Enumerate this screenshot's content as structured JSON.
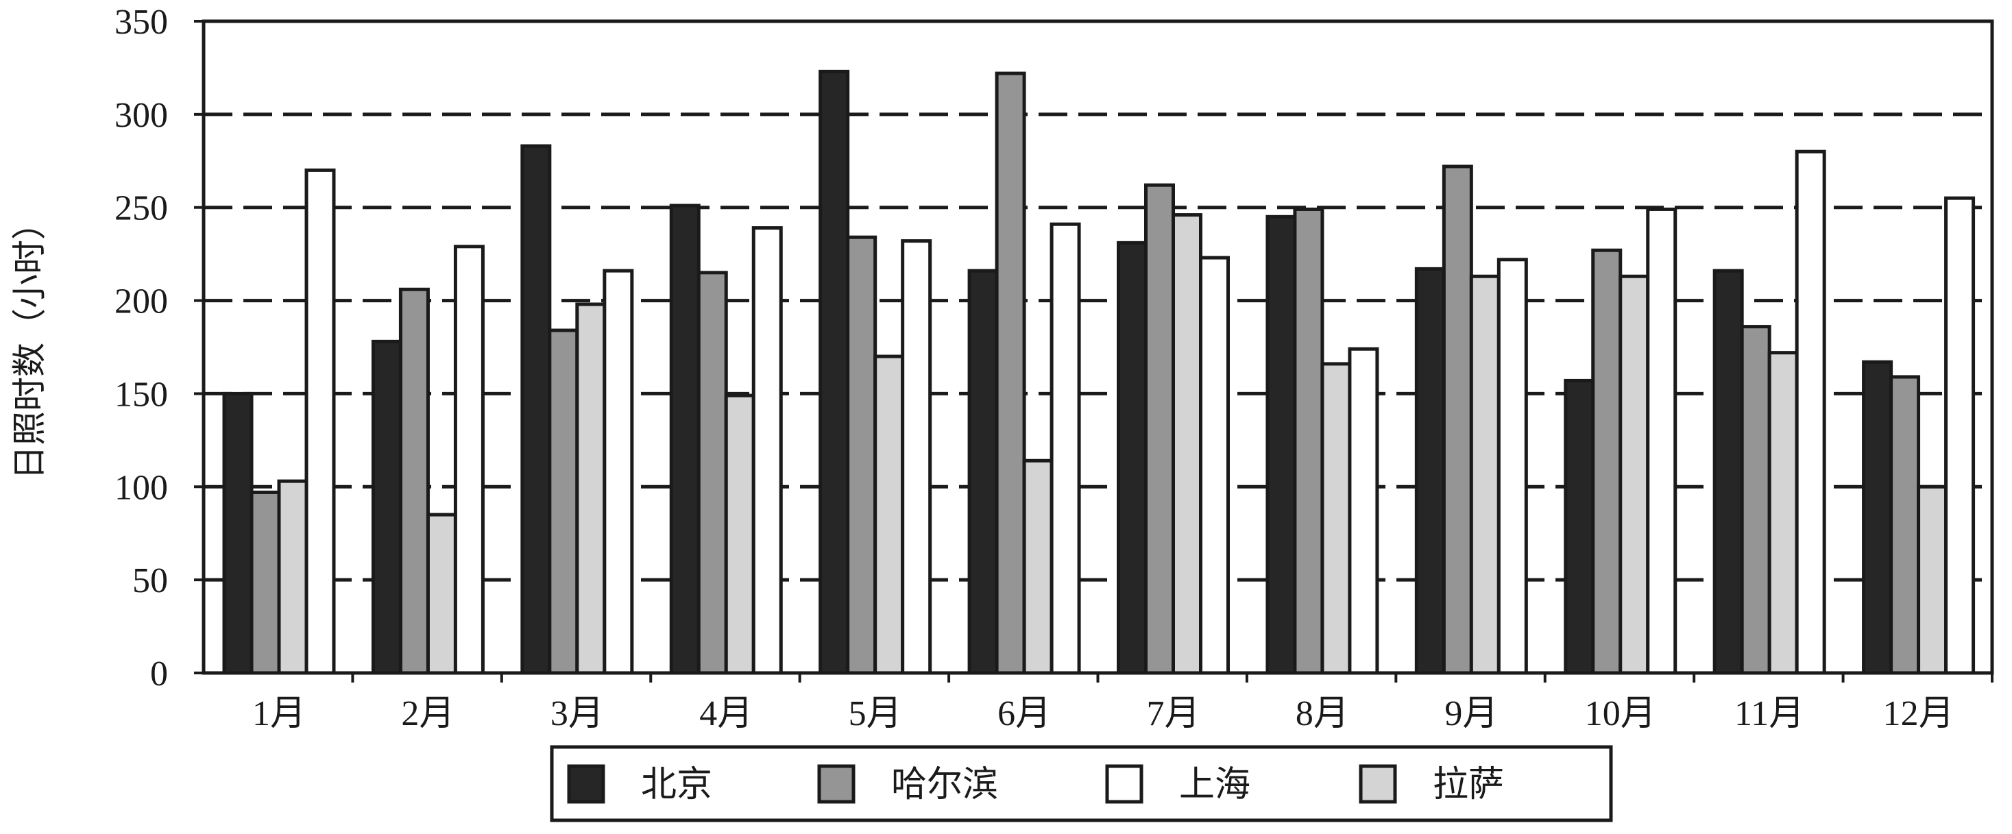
{
  "chart_data": {
    "type": "bar",
    "title": "",
    "xlabel": "",
    "ylabel": "日照时数（小时）",
    "ylim": [
      0,
      350
    ],
    "yticks": [
      0,
      50,
      100,
      150,
      200,
      250,
      300,
      350
    ],
    "grid": true,
    "grid_style": "dashed-horizontal",
    "legend_position": "bottom-center",
    "categories": [
      "1月",
      "2月",
      "3月",
      "4月",
      "5月",
      "6月",
      "7月",
      "8月",
      "9月",
      "10月",
      "11月",
      "12月"
    ],
    "series": [
      {
        "name": "北京",
        "color": "#262626",
        "values": [
          150,
          178,
          283,
          251,
          323,
          216,
          231,
          245,
          217,
          157,
          216,
          167
        ]
      },
      {
        "name": "哈尔滨",
        "color": "#959595",
        "values": [
          97,
          206,
          184,
          215,
          234,
          322,
          262,
          249,
          272,
          227,
          186,
          159
        ]
      },
      {
        "name": "上海",
        "color": "#ffffff",
        "values": [
          270,
          229,
          216,
          239,
          232,
          241,
          223,
          174,
          222,
          249,
          280,
          255
        ]
      },
      {
        "name": "拉萨",
        "color": "#d4d4d4",
        "values": [
          103,
          85,
          198,
          149,
          170,
          114,
          246,
          166,
          213,
          213,
          172,
          100
        ]
      }
    ],
    "draw_order": [
      "北京",
      "哈尔滨",
      "拉萨",
      "上海"
    ]
  }
}
